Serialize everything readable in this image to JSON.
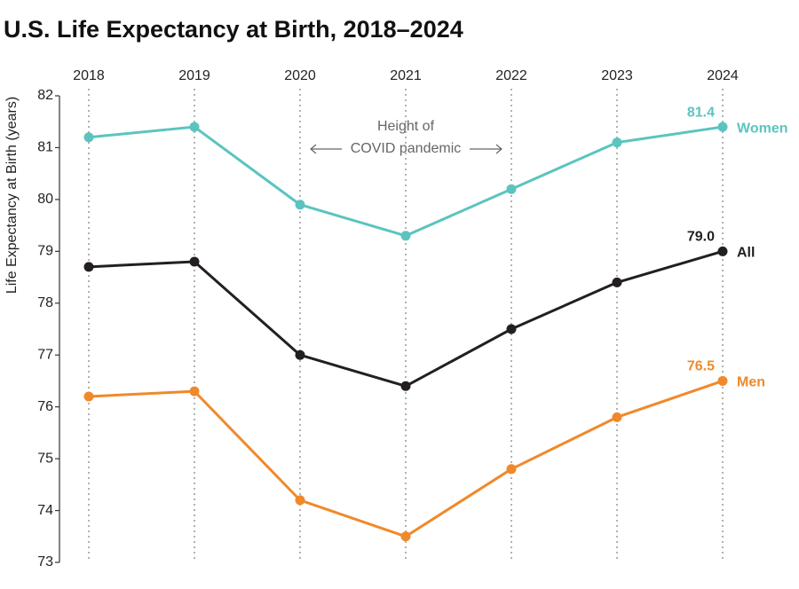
{
  "chart_data": {
    "type": "line",
    "title": "U.S. Life Expectancy at Birth, 2018–2024",
    "y_label": "Life Expectancy at Birth (years)",
    "annotation": [
      "Height of",
      "COVID pandemic"
    ],
    "categories": [
      "2018",
      "2019",
      "2020",
      "2021",
      "2022",
      "2023",
      "2024"
    ],
    "series": [
      {
        "name": "Women",
        "color": "#5bc4bf",
        "values": [
          81.2,
          81.4,
          79.9,
          79.3,
          80.2,
          81.1,
          81.4
        ],
        "value_labels": [
          null,
          null,
          null,
          null,
          null,
          null,
          "81.4"
        ]
      },
      {
        "name": "All",
        "color": "#231f20",
        "values": [
          78.7,
          78.8,
          77.0,
          76.4,
          77.5,
          78.4,
          79.0
        ],
        "value_labels": [
          null,
          null,
          null,
          null,
          null,
          null,
          "79.0"
        ]
      },
      {
        "name": "Men",
        "color": "#f0892a",
        "values": [
          76.2,
          76.3,
          74.2,
          73.5,
          74.8,
          75.8,
          76.5
        ],
        "value_labels": [
          null,
          null,
          null,
          null,
          null,
          null,
          "76.5"
        ]
      }
    ],
    "ylim": [
      73,
      82
    ],
    "yticks": [
      73,
      74,
      75,
      76,
      77,
      78,
      79,
      80,
      81,
      82
    ],
    "grid": "x"
  }
}
